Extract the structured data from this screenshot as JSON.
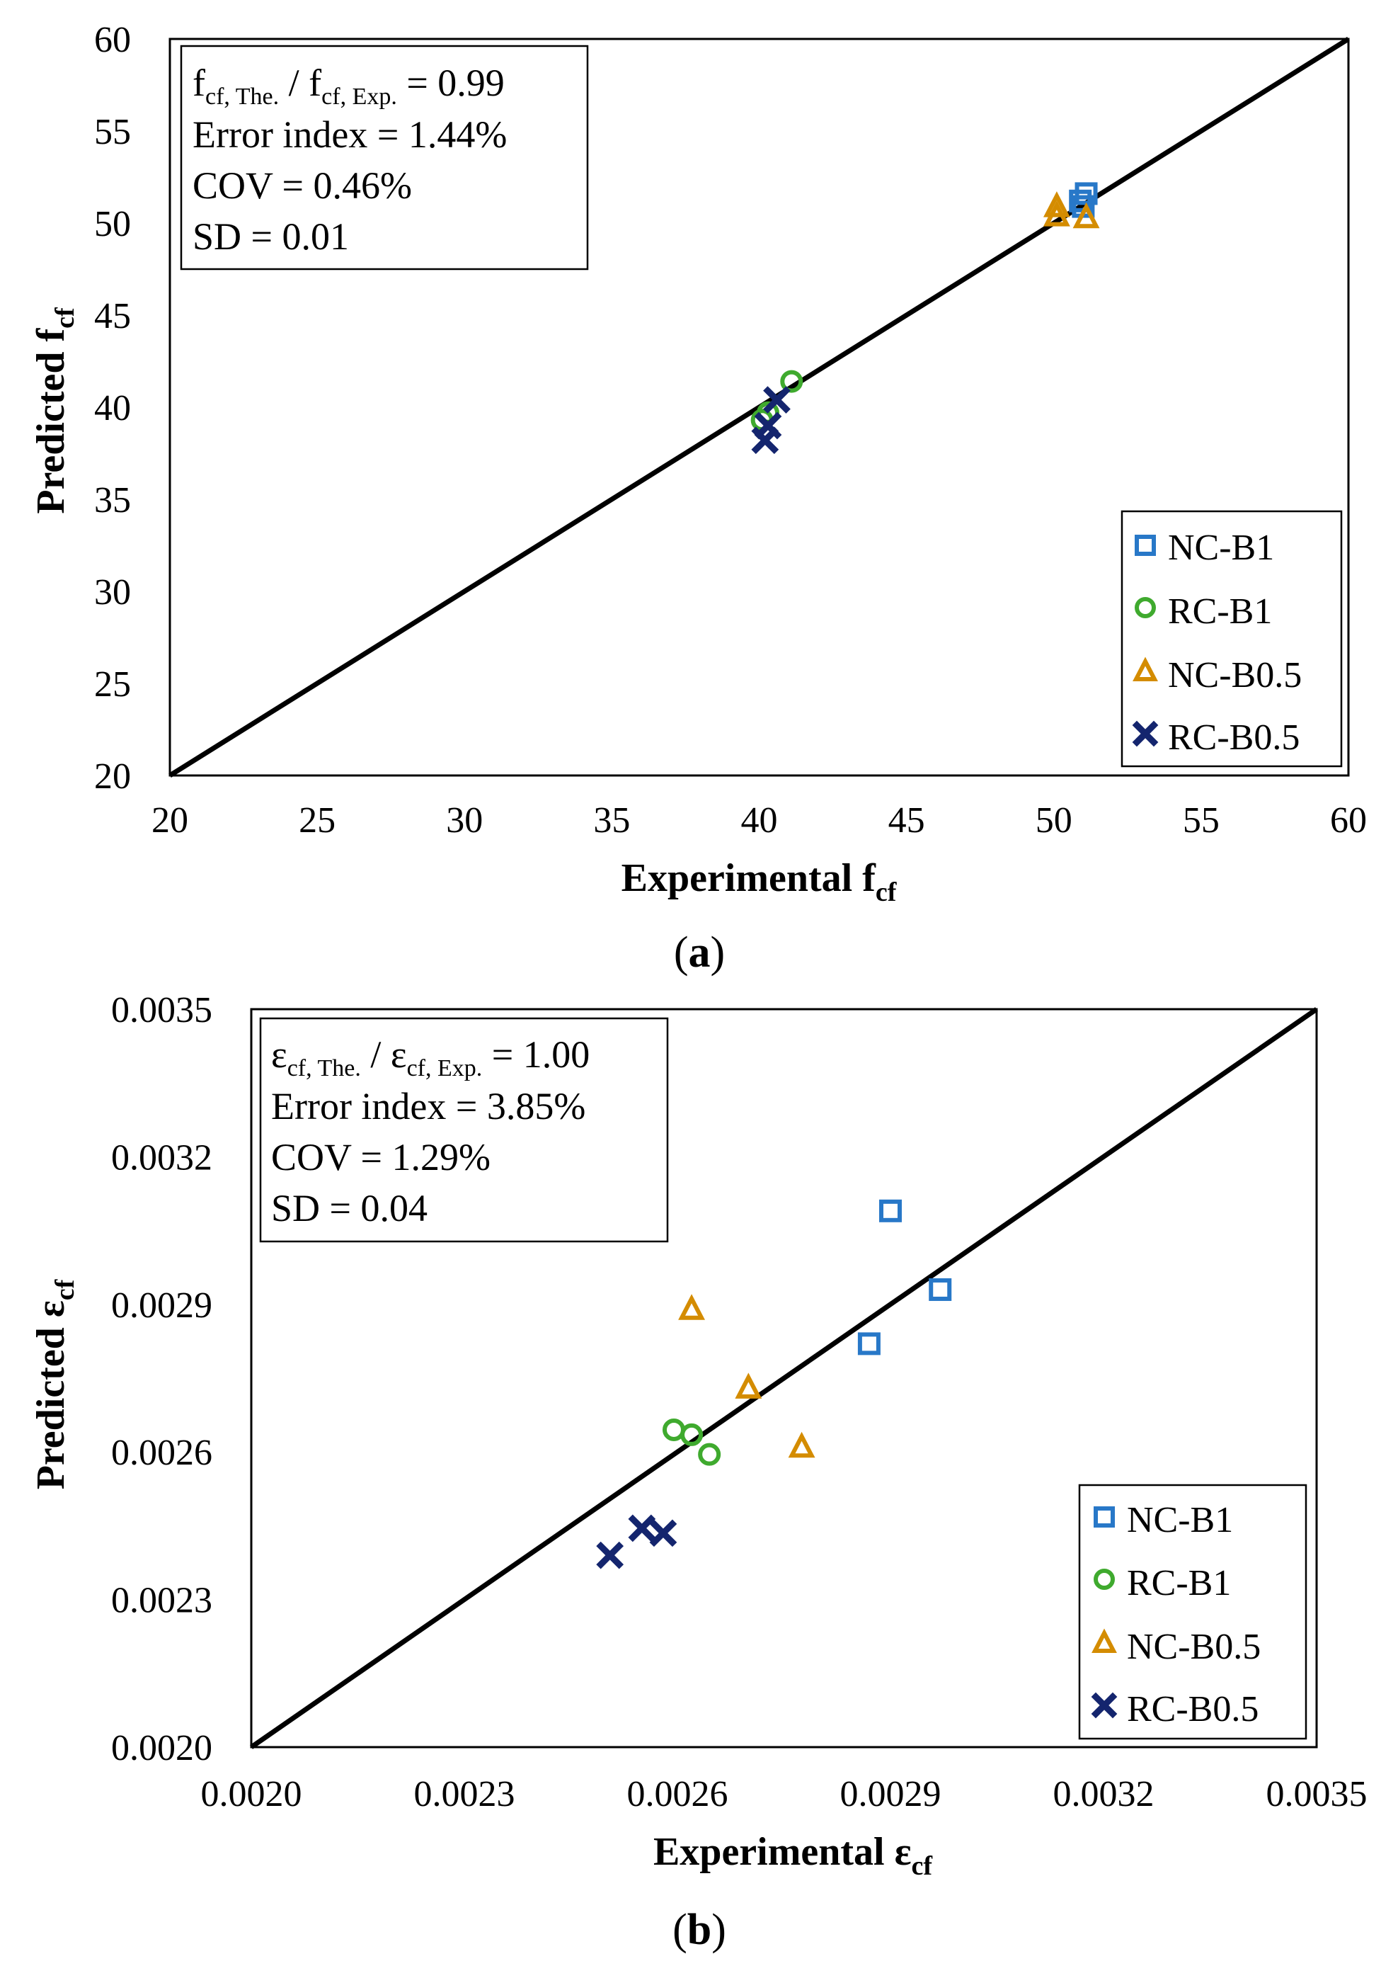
{
  "figure": {
    "colors": {
      "NC-B1": "#2878c8",
      "RC-B1": "#3faa2e",
      "NC-B0.5": "#d48c00",
      "RC-B0.5": "#14256e",
      "axis": "#000000",
      "line": "#000000"
    }
  },
  "chart_data": [
    {
      "type": "scatter",
      "panel_label": {
        "open": "(",
        "letter": "a",
        "close": ")"
      },
      "xlabel": "Experimental f",
      "xlabel_sub": "cf",
      "ylabel": "Predicted f",
      "ylabel_sub": "cf",
      "xlim": [
        20,
        60
      ],
      "ylim": [
        20,
        60
      ],
      "xticks": [
        "20",
        "25",
        "30",
        "35",
        "40",
        "45",
        "50",
        "55",
        "60"
      ],
      "yticks": [
        "20",
        "25",
        "30",
        "35",
        "40",
        "45",
        "50",
        "55",
        "60"
      ],
      "reference_line": {
        "from": [
          20,
          20
        ],
        "to": [
          60,
          60
        ]
      },
      "stats": {
        "ratio": {
          "a": "f",
          "a_sub": "cf, The.",
          "sep": " / ",
          "b": "f",
          "b_sub": "cf, Exp.",
          "tail": " = 0.99"
        },
        "error_index": "Error index = 1.44%",
        "cov": "COV = 0.46%",
        "sd": "SD = 0.01"
      },
      "legend_position": "bottom-right",
      "series": [
        {
          "name": "NC-B1",
          "marker": "square",
          "color": "#2878c8",
          "points": [
            [
              50.9,
              51.2
            ],
            [
              51.1,
              51.6
            ],
            [
              51.0,
              50.9
            ]
          ]
        },
        {
          "name": "RC-B1",
          "marker": "circle",
          "color": "#3faa2e",
          "points": [
            [
              41.1,
              41.4
            ],
            [
              40.1,
              39.3
            ],
            [
              40.3,
              39.7
            ]
          ]
        },
        {
          "name": "NC-B0.5",
          "marker": "triangle",
          "color": "#d48c00",
          "points": [
            [
              50.1,
              50.4
            ],
            [
              50.1,
              50.9
            ],
            [
              51.1,
              50.3
            ]
          ]
        },
        {
          "name": "RC-B0.5",
          "marker": "cross",
          "color": "#14256e",
          "points": [
            [
              40.6,
              40.4
            ],
            [
              40.3,
              39.0
            ],
            [
              40.2,
              38.2
            ]
          ]
        }
      ]
    },
    {
      "type": "scatter",
      "panel_label": {
        "open": "(",
        "letter": "b",
        "close": ")"
      },
      "xlabel": "Experimental ε",
      "xlabel_sub": "cf",
      "ylabel": "Predicted ε",
      "ylabel_sub": "cf",
      "xlim": [
        0.002,
        0.0035
      ],
      "ylim": [
        0.002,
        0.0035
      ],
      "xticks": [
        "0.0020",
        "0.0023",
        "0.0026",
        "0.0029",
        "0.0032",
        "0.0035"
      ],
      "yticks": [
        "0.0020",
        "0.0023",
        "0.0026",
        "0.0029",
        "0.0032",
        "0.0035"
      ],
      "reference_line": {
        "from": [
          0.002,
          0.002
        ],
        "to": [
          0.0035,
          0.0035
        ]
      },
      "stats": {
        "ratio": {
          "a": "ε",
          "a_sub": "cf, The.",
          "sep": " / ",
          "b": "ε",
          "b_sub": "cf, Exp.",
          "tail": " = 1.00"
        },
        "error_index": "Error index = 3.85%",
        "cov": "COV = 1.29%",
        "sd": "SD = 0.04"
      },
      "legend_position": "bottom-right",
      "series": [
        {
          "name": "NC-B1",
          "marker": "square",
          "color": "#2878c8",
          "points": [
            [
              0.0029,
              0.00309
            ],
            [
              0.00297,
              0.00293
            ],
            [
              0.00287,
              0.00282
            ]
          ]
        },
        {
          "name": "RC-B1",
          "marker": "circle",
          "color": "#3faa2e",
          "points": [
            [
              0.002595,
              0.002645
            ],
            [
              0.00262,
              0.002635
            ],
            [
              0.002645,
              0.002595
            ]
          ]
        },
        {
          "name": "NC-B0.5",
          "marker": "triangle",
          "color": "#d48c00",
          "points": [
            [
              0.00262,
              0.00289
            ],
            [
              0.0027,
              0.00273
            ],
            [
              0.002775,
              0.00261
            ]
          ]
        },
        {
          "name": "RC-B0.5",
          "marker": "cross",
          "color": "#14256e",
          "points": [
            [
              0.002505,
              0.00239
            ],
            [
              0.00255,
              0.002445
            ],
            [
              0.00258,
              0.002435
            ]
          ]
        }
      ]
    }
  ]
}
